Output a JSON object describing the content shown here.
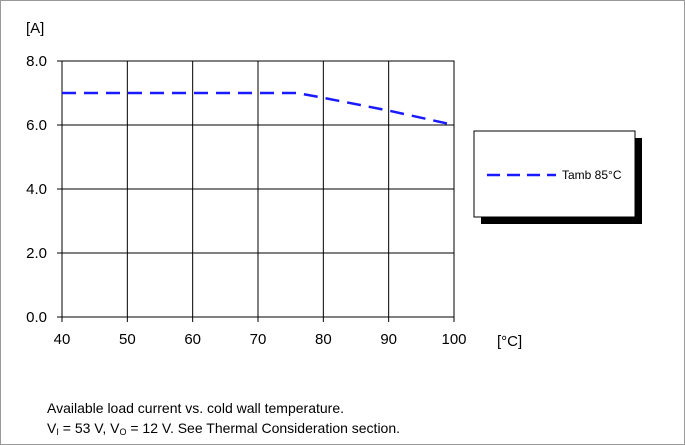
{
  "chart_data": {
    "type": "line",
    "ylabel": "[A]",
    "xlabel": "[°C]",
    "xlim": [
      40,
      100
    ],
    "ylim": [
      0,
      8
    ],
    "x_ticks": [
      "40",
      "50",
      "60",
      "70",
      "80",
      "90",
      "100"
    ],
    "y_ticks": [
      "0.0",
      "2.0",
      "4.0",
      "6.0",
      "8.0"
    ],
    "grid": true,
    "legend_position": "right",
    "series": [
      {
        "name": "Tamb 85°C",
        "color": "#1a1aff",
        "style": "dashed",
        "x": [
          40,
          50,
          60,
          70,
          76,
          80,
          90,
          100
        ],
        "y": [
          7.0,
          7.0,
          7.0,
          7.0,
          7.0,
          6.85,
          6.45,
          6.0
        ]
      }
    ]
  },
  "caption": {
    "line1": "Available load current vs. cold wall temperature.",
    "line2_vi_prefix": "V",
    "line2_vi_sub": "I",
    "line2_vi_value": " = 53 V, ",
    "line2_vo_prefix": "V",
    "line2_vo_sub": "O",
    "line2_rest": " = 12 V. See Thermal Consideration section."
  }
}
